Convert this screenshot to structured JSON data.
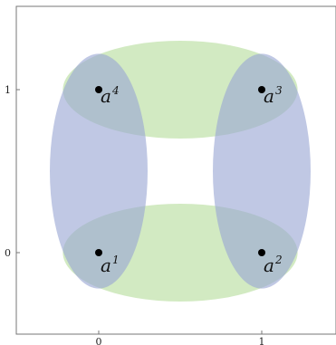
{
  "colors": {
    "green_ellipse": "#b7dd9c",
    "blue_ellipse": "#9aa6d4",
    "frame": "#777777",
    "point": "#000000"
  },
  "axes": {
    "x_ticks": [
      {
        "value": 0,
        "label": "0"
      },
      {
        "value": 1,
        "label": "1"
      }
    ],
    "y_ticks": [
      {
        "value": 0,
        "label": "0"
      },
      {
        "value": 1,
        "label": "1"
      }
    ]
  },
  "points": [
    {
      "id": "a1",
      "x": 0,
      "y": 0,
      "base": "a",
      "sup": "1"
    },
    {
      "id": "a2",
      "x": 1,
      "y": 0,
      "base": "a",
      "sup": "2"
    },
    {
      "id": "a3",
      "x": 1,
      "y": 1,
      "base": "a",
      "sup": "3"
    },
    {
      "id": "a4",
      "x": 0,
      "y": 1,
      "base": "a",
      "sup": "4"
    }
  ],
  "ellipses": [
    {
      "name": "bottom",
      "color": "green",
      "cx": 0.5,
      "cy": 0,
      "rx": 0.72,
      "ry": 0.3
    },
    {
      "name": "top",
      "color": "green",
      "cx": 0.5,
      "cy": 1,
      "rx": 0.72,
      "ry": 0.3
    },
    {
      "name": "left",
      "color": "blue",
      "cx": 0,
      "cy": 0.5,
      "rx": 0.3,
      "ry": 0.72
    },
    {
      "name": "right",
      "color": "blue",
      "cx": 1,
      "cy": 0.5,
      "rx": 0.3,
      "ry": 0.72
    }
  ]
}
